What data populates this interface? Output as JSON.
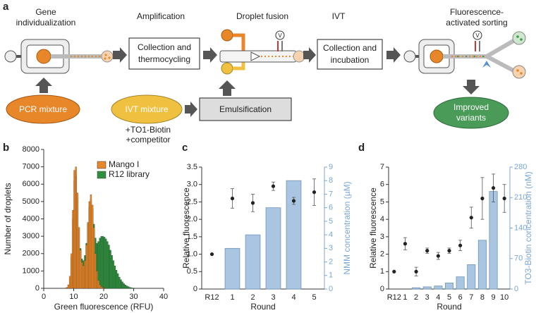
{
  "diagram": {
    "label": "a",
    "steps": [
      {
        "title": [
          "Gene",
          "individualization"
        ]
      },
      {
        "title": [
          "Amplification"
        ]
      },
      {
        "title": [
          "Droplet fusion"
        ]
      },
      {
        "title": [
          "IVT"
        ]
      },
      {
        "title": [
          "Fluorescence-",
          "activated sorting"
        ]
      }
    ],
    "boxes": [
      [
        "Collection and",
        "thermocycling"
      ],
      [
        "Collection and",
        "incubation"
      ],
      [
        "Emulsification"
      ]
    ],
    "inputs": [
      "PCR mixture",
      "IVT mixture"
    ],
    "additives": [
      "+TO1-Biotin",
      "+competitor"
    ],
    "output": [
      "Improved",
      "variants"
    ],
    "electrodes": [
      "V",
      "V"
    ]
  },
  "chart_data": [
    {
      "type": "histogram",
      "panel_label": "b",
      "xlabel": "Green fluorescence (RFU)",
      "ylabel": "Number of droplets",
      "bins": [
        7,
        7.5,
        8,
        8.5,
        9,
        9.5,
        10,
        10.5,
        11,
        11.5,
        12,
        12.5,
        13,
        13.5,
        14,
        14.5,
        15,
        15.5,
        16,
        16.5,
        17,
        17.5,
        18,
        18.5,
        19,
        19.5,
        20,
        20.5,
        21,
        21.5,
        22,
        22.5,
        23,
        23.5,
        24,
        24.5,
        25,
        25.5,
        26,
        26.5,
        27,
        27.5,
        28,
        28.5,
        29,
        29.5,
        30,
        30.5,
        31,
        31.5,
        32,
        32.5,
        33,
        33.5,
        34,
        34.5,
        35
      ],
      "series": [
        {
          "name": "R12 library",
          "color": "#2f8f3f",
          "values": [
            0,
            50,
            200,
            600,
            1800,
            4000,
            6200,
            6500,
            5200,
            3500,
            2300,
            1700,
            1600,
            1900,
            2600,
            3700,
            4700,
            5100,
            4600,
            3700,
            2900,
            2600,
            2700,
            2900,
            3000,
            3000,
            2950,
            2850,
            2700,
            2500,
            2200,
            1900,
            1600,
            1300,
            1050,
            850,
            650,
            500,
            380,
            280,
            200,
            140,
            100,
            60,
            40,
            20,
            10,
            0,
            0,
            0,
            0,
            0,
            0,
            0,
            0,
            0
          ]
        },
        {
          "name": "Mango I",
          "color": "#e8862a",
          "values": [
            0,
            50,
            200,
            700,
            2000,
            4500,
            6800,
            7000,
            5500,
            3500,
            2200,
            1500,
            1300,
            1600,
            2500,
            3800,
            5000,
            5400,
            4800,
            3500,
            2000,
            1000,
            450,
            200,
            100,
            50,
            20,
            0,
            0,
            0,
            0,
            0,
            0,
            0,
            0,
            0,
            0,
            0,
            0,
            0,
            0,
            0,
            0,
            0,
            0,
            0,
            0,
            0,
            0,
            0,
            0,
            0,
            0,
            0,
            0,
            0
          ]
        }
      ],
      "legend_order": [
        1,
        0
      ],
      "legend": "upper right",
      "xlim": [
        0,
        40
      ],
      "xticks": [
        0,
        10,
        20,
        30,
        40
      ],
      "ylim": [
        0,
        8000
      ],
      "yticks": [
        0,
        1000,
        2000,
        3000,
        4000,
        5000,
        6000,
        7000,
        8000
      ]
    },
    {
      "type": "combo",
      "panel_label": "c",
      "xlabel": "Round",
      "ylabel": "Relative fluorescence",
      "y2label": "NMM concentration (µM)",
      "categories": [
        "R12",
        "1",
        "2",
        "3",
        "4",
        "5"
      ],
      "series": [
        {
          "type": "bar",
          "axis": "y2",
          "color": "#a9c5e2",
          "values": [
            null,
            3,
            4,
            6,
            8,
            null
          ]
        },
        {
          "type": "scatter",
          "color": "#222222",
          "values": [
            1.0,
            2.6,
            2.47,
            2.95,
            2.53,
            2.78
          ],
          "errors": [
            null,
            0.28,
            0.25,
            0.12,
            0.1,
            0.38
          ]
        }
      ],
      "ylim": [
        0,
        3.5
      ],
      "yticks": [
        0,
        0.5,
        {
          "value": 1,
          "label": "1.0"
        },
        1.5,
        {
          "value": 2,
          "label": "2.0"
        },
        2.5,
        {
          "value": 3,
          "label": "3.0"
        },
        3.5
      ],
      "y2lim": [
        0,
        9
      ],
      "y2ticks": [
        0,
        1,
        2,
        3,
        4,
        5,
        6,
        7,
        8,
        9
      ],
      "y2color": "#7aa7d3"
    },
    {
      "type": "combo",
      "panel_label": "d",
      "xlabel": "Round",
      "ylabel": "Relative fluorescence",
      "y2label": "TO3-Biotin concentration (nM)",
      "categories": [
        "R12",
        "1",
        "2",
        "3",
        "4",
        "5",
        "6",
        "7",
        "8",
        "9",
        "10"
      ],
      "series": [
        {
          "type": "bar",
          "axis": "y2",
          "color": "#a9c5e2",
          "values": [
            null,
            null,
            3,
            5,
            7,
            14,
            28,
            56,
            112,
            224,
            null
          ]
        },
        {
          "type": "scatter",
          "color": "#222222",
          "values": [
            1.0,
            2.6,
            1.0,
            2.2,
            1.9,
            2.2,
            2.5,
            4.1,
            5.2,
            5.8,
            5.2
          ],
          "errors": [
            null,
            0.35,
            0.25,
            0.15,
            0.2,
            0.15,
            0.3,
            0.6,
            1.2,
            0.8,
            0.8
          ]
        }
      ],
      "ylim": [
        0,
        7
      ],
      "yticks": [
        0,
        1,
        2,
        3,
        4,
        5,
        6,
        7
      ],
      "y2lim": [
        0,
        280
      ],
      "y2ticks": [
        0,
        70,
        140,
        210,
        280
      ],
      "y2color": "#7aa7d3"
    }
  ]
}
